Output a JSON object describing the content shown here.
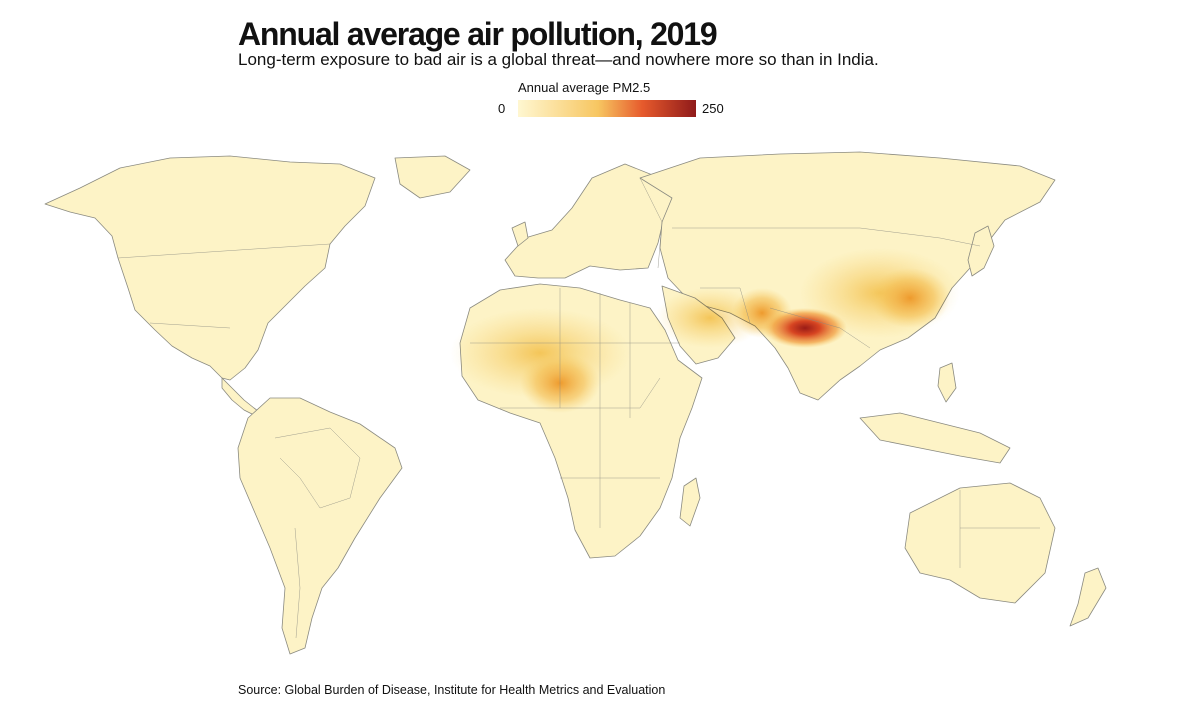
{
  "header": {
    "title": "Annual average air pollution, 2019",
    "subtitle": "Long-term exposure to bad air is a global threat—and nowhere more so than in India."
  },
  "legend": {
    "title": "Annual average PM2.5",
    "min_label": "0",
    "max_label": "250",
    "color_low": "#fff7d1",
    "color_mid": "#f3a83a",
    "color_high": "#8f1a1a"
  },
  "map": {
    "land_color": "#fdf3c6",
    "border_color": "#8a8a80",
    "hotspot_regions": [
      "India",
      "Nigeria",
      "China",
      "Sahel"
    ]
  },
  "footer": {
    "source": "Source: Global Burden of Disease, Institute for Health Metrics and Evaluation"
  }
}
